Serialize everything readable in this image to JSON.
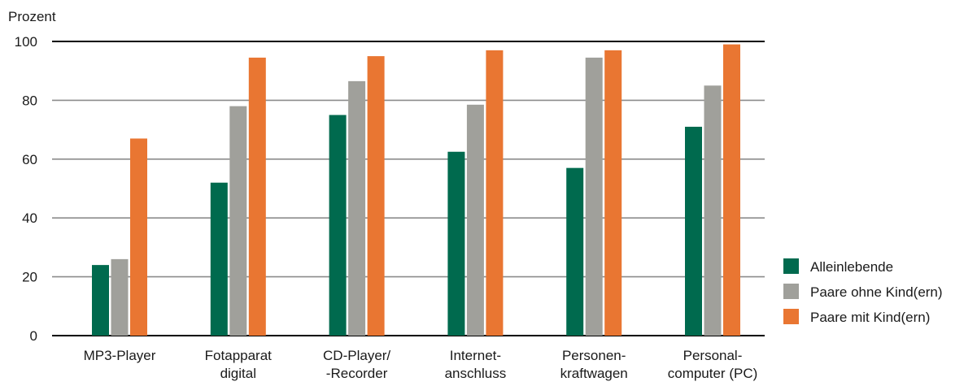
{
  "chart_data": {
    "type": "bar",
    "ylabel": "Prozent",
    "xlabel": "",
    "ylim": [
      0,
      100
    ],
    "yticks": [
      0,
      20,
      40,
      60,
      80,
      100
    ],
    "grid": true,
    "legend_position": "right",
    "categories": [
      [
        "MP3-Player"
      ],
      [
        "Fotapparat",
        "digital"
      ],
      [
        "CD-Player/",
        "-Recorder"
      ],
      [
        "Internet-",
        "anschluss"
      ],
      [
        "Personen-",
        "kraftwagen"
      ],
      [
        "Personal-",
        "computer (PC)"
      ]
    ],
    "series": [
      {
        "name": "Alleinlebende",
        "color": "#006a4e",
        "values": [
          24,
          52,
          75,
          62.5,
          57,
          71
        ]
      },
      {
        "name": "Paare ohne Kind(ern)",
        "color": "#a0a09b",
        "values": [
          26,
          78,
          86.5,
          78.5,
          94.5,
          85
        ]
      },
      {
        "name": "Paare mit Kind(ern)",
        "color": "#e97632",
        "values": [
          67,
          94.5,
          95,
          97,
          97,
          99
        ]
      }
    ]
  }
}
